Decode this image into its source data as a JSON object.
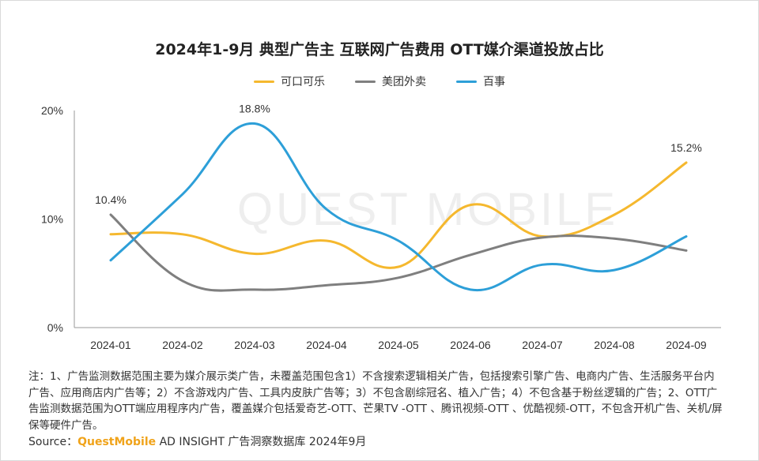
{
  "title": "2024年1-9月 典型广告主 互联网广告费用 OTT媒介渠道投放占比",
  "watermark": "QUEST MOBILE",
  "notes": "注：1、广告监测数据范围主要为媒介展示类广告，未覆盖范围包含1）不含搜索逻辑相关广告，包括搜索引擎广告、电商内广告、生活服务平台内广告、应用商店内广告等；2）不含游戏内广告、工具内皮肤广告等；3）不包含剧综冠名、植入广告；4）不包含基于粉丝逻辑的广告；2、OTT广告监测数据范围为OTT端应用程序内广告，覆盖媒介包括爱奇艺-OTT、芒果TV -OTT 、腾讯视频-OTT 、优酷视频-OTT，不包含开机广告、关机/屏保等硬件广告。",
  "source": {
    "prefix": "Source：",
    "brand": "QuestMobile",
    "suffix": " AD INSIGHT 广告洞察数据库 2024年9月"
  },
  "colors": {
    "可口可乐": "#f5b82e",
    "美团外卖": "#7f7f7f",
    "百事": "#2d9fd8"
  },
  "chart_data": {
    "type": "line",
    "x": [
      "2024-01",
      "2024-02",
      "2024-03",
      "2024-04",
      "2024-05",
      "2024-06",
      "2024-07",
      "2024-08",
      "2024-09"
    ],
    "yticks": [
      "0%",
      "10%",
      "20%"
    ],
    "ylim": [
      0,
      20
    ],
    "legend_position": "top-center",
    "series": [
      {
        "name": "可口可乐",
        "values": [
          8.6,
          8.6,
          6.8,
          8.0,
          5.6,
          11.3,
          8.4,
          10.4,
          15.2
        ]
      },
      {
        "name": "美团外卖",
        "values": [
          10.4,
          4.3,
          3.5,
          3.9,
          4.6,
          6.7,
          8.3,
          8.2,
          7.1
        ]
      },
      {
        "name": "百事",
        "values": [
          6.2,
          12.3,
          18.8,
          10.9,
          8.0,
          3.5,
          5.8,
          5.3,
          8.4
        ]
      }
    ],
    "data_labels": [
      {
        "series": "美团外卖",
        "x": "2024-01",
        "text": "10.4%"
      },
      {
        "series": "百事",
        "x": "2024-03",
        "text": "18.8%"
      },
      {
        "series": "可口可乐",
        "x": "2024-09",
        "text": "15.2%"
      }
    ]
  }
}
